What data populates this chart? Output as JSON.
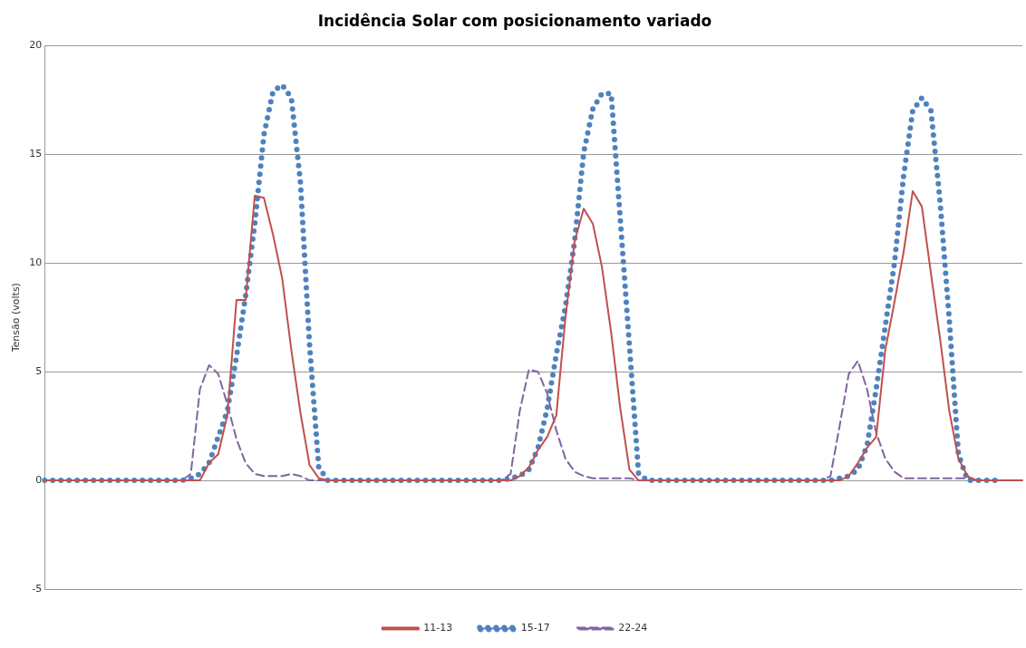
{
  "chart_data": {
    "type": "line",
    "title": "Incidência Solar com posicionamento variado",
    "ylabel": "Tensão (volts)",
    "categories": [
      null,
      null,
      null,
      null,
      null,
      null,
      null,
      null,
      null,
      null,
      null,
      null,
      null,
      null,
      null,
      null,
      null,
      null,
      null,
      null,
      null,
      null,
      null,
      null,
      null,
      null,
      null,
      null,
      null,
      null,
      null,
      null,
      null,
      null,
      null,
      null,
      null,
      null,
      null,
      null,
      null,
      null,
      null,
      null,
      null,
      null,
      null,
      null,
      null,
      null,
      null,
      null,
      null,
      null,
      null,
      null,
      null,
      null,
      null,
      null,
      null,
      null,
      null,
      null,
      null,
      null,
      null,
      null,
      null,
      null,
      null,
      null,
      null,
      null,
      null,
      null,
      null,
      null,
      null,
      null,
      null,
      null,
      null,
      null,
      null,
      null,
      null,
      null,
      null,
      null,
      null,
      null,
      null,
      null,
      null,
      null,
      null,
      null,
      null,
      null,
      null,
      null,
      null,
      null,
      null,
      null,
      null,
      null
    ],
    "series": [
      {
        "name": "11-13",
        "color": "#c0504d",
        "line_style": "solid",
        "values": [
          0,
          0,
          0,
          0,
          0,
          0,
          0,
          0,
          0,
          0,
          0,
          0,
          0,
          0,
          0,
          0,
          0,
          0,
          0.8,
          1.2,
          3.0,
          8.3,
          8.3,
          13.1,
          13.0,
          11.3,
          9.3,
          6.0,
          3.1,
          0.7,
          0.1,
          0,
          0,
          0,
          0,
          0,
          0,
          0,
          0,
          0,
          0,
          0,
          0,
          0,
          0,
          0,
          0,
          0,
          0,
          0,
          0,
          0,
          0.2,
          0.6,
          1.4,
          2.0,
          3.0,
          7.5,
          11.0,
          12.5,
          11.8,
          9.8,
          6.8,
          3.3,
          0.5,
          0,
          0,
          0,
          0,
          0,
          0,
          0,
          0,
          0,
          0,
          0,
          0,
          0,
          0,
          0,
          0,
          0,
          0,
          0,
          0,
          0,
          0,
          0,
          0.2,
          0.8,
          1.5,
          2.0,
          6.0,
          8.2,
          10.5,
          13.3,
          12.6,
          9.5,
          6.5,
          3.2,
          1.0,
          0.2,
          0,
          0,
          0,
          0,
          0,
          0
        ]
      },
      {
        "name": "15-17",
        "color": "#4f81bd",
        "line_style": "dotted",
        "values": [
          0,
          0,
          0,
          0,
          0,
          0,
          0,
          0,
          0,
          0,
          0,
          0,
          0,
          0,
          0,
          0,
          0.1,
          0.3,
          0.8,
          2.0,
          3.2,
          5.7,
          8.5,
          11.8,
          15.9,
          17.9,
          18.2,
          17.6,
          13.7,
          6.2,
          0.6,
          0,
          0,
          0,
          0,
          0,
          0,
          0,
          0,
          0,
          0,
          0,
          0,
          0,
          0,
          0,
          0,
          0,
          0,
          0,
          0,
          0.1,
          0.2,
          0.5,
          1.5,
          3.3,
          5.8,
          8.0,
          11.0,
          15.1,
          17.1,
          17.8,
          17.8,
          12.0,
          6.2,
          0.3,
          0,
          0,
          0,
          0,
          0,
          0,
          0,
          0,
          0,
          0,
          0,
          0,
          0,
          0,
          0,
          0,
          0,
          0,
          0,
          0,
          0,
          0.1,
          0.2,
          0.5,
          1.6,
          4.2,
          7.1,
          10.0,
          14.0,
          17.0,
          17.6,
          17.0,
          12.8,
          7.4,
          1.2,
          0,
          0,
          0,
          0,
          null,
          null,
          null
        ]
      },
      {
        "name": "22-24",
        "color": "#8064a2",
        "line_style": "dashed",
        "values": [
          0,
          0,
          0,
          0,
          0,
          0,
          0,
          0,
          0,
          0,
          0,
          0,
          0,
          0,
          0,
          0,
          0.3,
          4.2,
          5.3,
          4.9,
          3.5,
          1.9,
          0.8,
          0.3,
          0.2,
          0.2,
          0.2,
          0.3,
          0.2,
          0,
          0,
          0,
          0,
          0,
          0,
          0,
          0,
          0,
          0,
          0,
          0,
          0,
          0,
          0,
          0,
          0,
          0,
          0,
          0,
          0,
          0,
          0.3,
          3.2,
          5.1,
          5.0,
          4.0,
          2.3,
          1.0,
          0.4,
          0.2,
          0.1,
          0.1,
          0.1,
          0.1,
          0.1,
          0,
          0,
          0,
          0,
          0,
          0,
          0,
          0,
          0,
          0,
          0,
          0,
          0,
          0,
          0,
          0,
          0,
          0,
          0,
          0,
          0,
          0.2,
          2.5,
          4.9,
          5.5,
          4.2,
          2.2,
          1.0,
          0.4,
          0.1,
          0.1,
          0.1,
          0.1,
          0.1,
          0.1,
          0.1,
          0.1,
          0,
          0,
          null,
          null,
          null,
          null
        ]
      }
    ],
    "ylim": [
      -5,
      20
    ],
    "yticks": [
      -5,
      0,
      5,
      10,
      15,
      20
    ],
    "grid": "y",
    "legend": "bottom",
    "marker": "none",
    "tick_labels": "y"
  }
}
